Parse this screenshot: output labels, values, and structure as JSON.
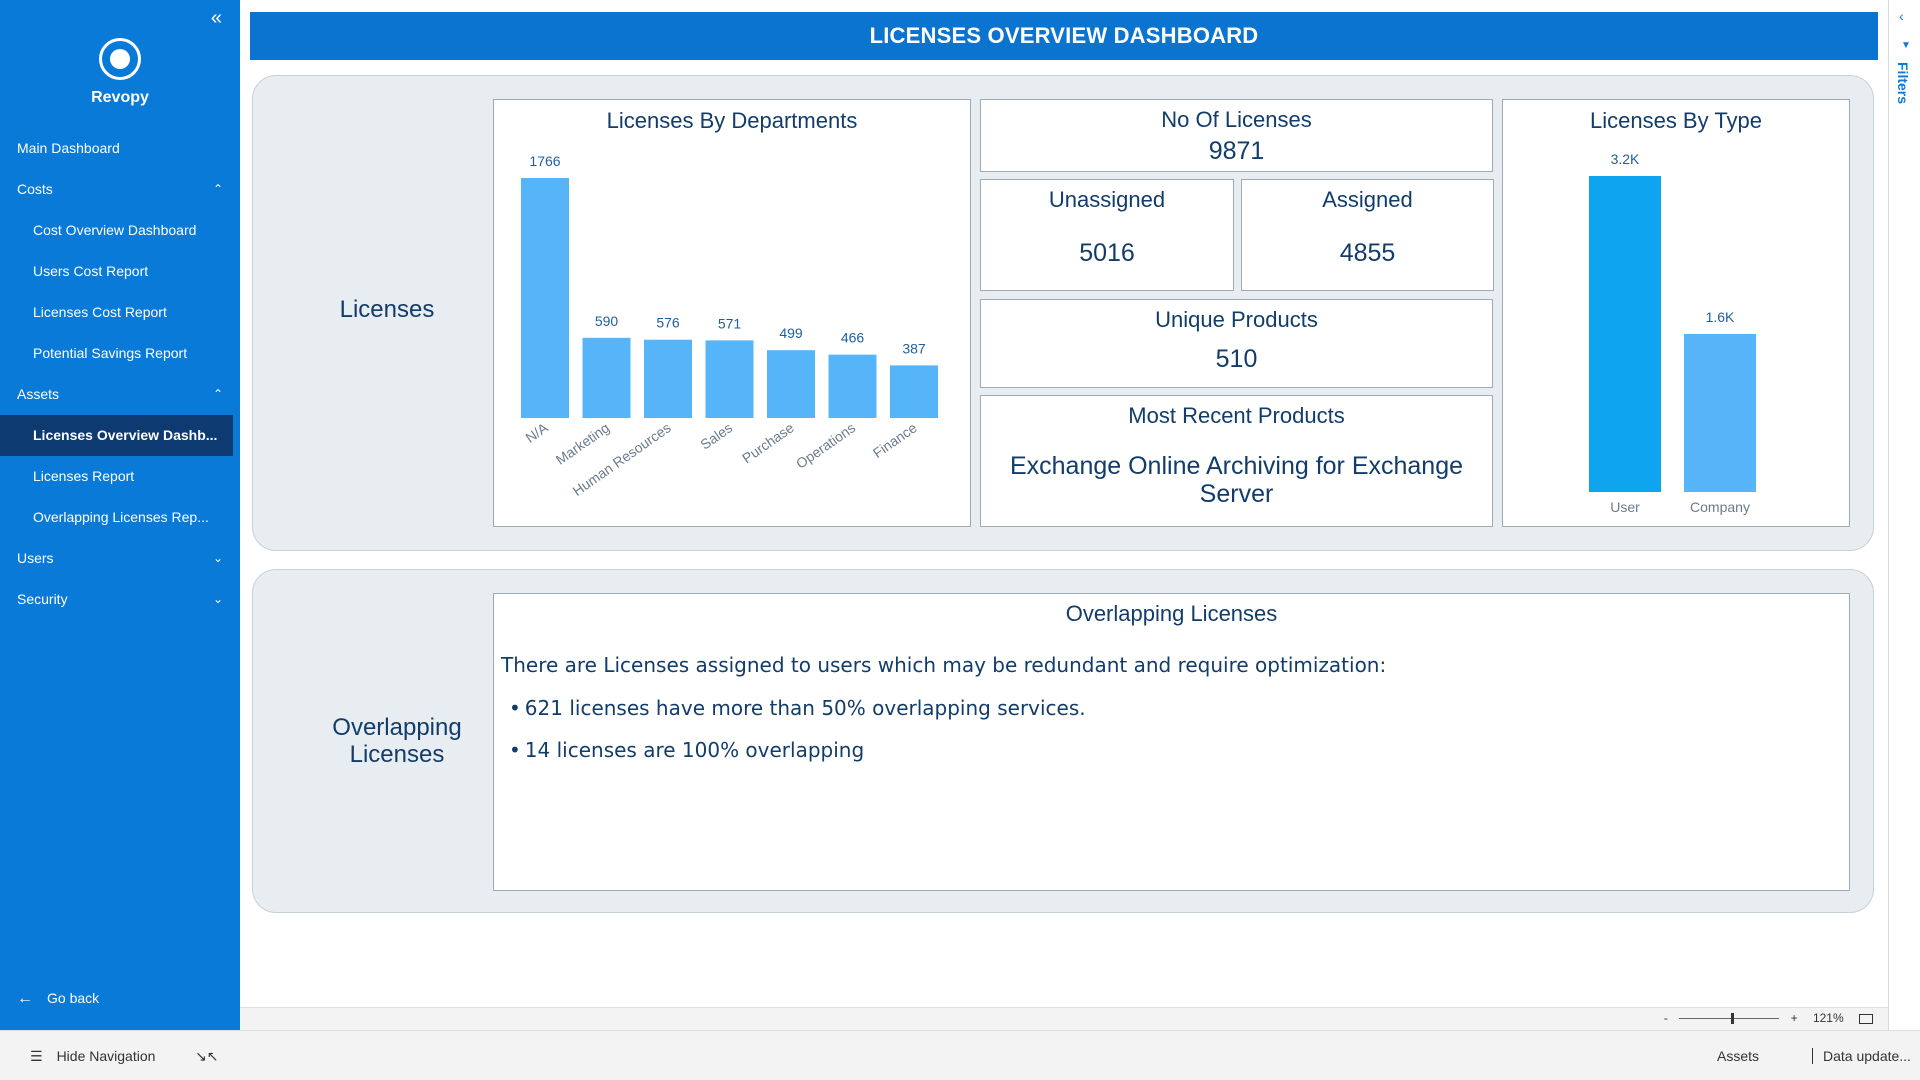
{
  "app": {
    "brand": "Revopy"
  },
  "sidebar": {
    "items": [
      {
        "label": "Main Dashboard"
      },
      {
        "label": "Costs",
        "chevron": "^"
      },
      {
        "label": "Cost Overview Dashboard"
      },
      {
        "label": "Users Cost Report"
      },
      {
        "label": "Licenses Cost Report"
      },
      {
        "label": "Potential Savings Report"
      },
      {
        "label": "Assets",
        "chevron": "^"
      },
      {
        "label": "Licenses Overview Dashb..."
      },
      {
        "label": "Licenses Report"
      },
      {
        "label": "Overlapping Licenses Rep..."
      },
      {
        "label": "Users",
        "chevron": "v"
      },
      {
        "label": "Security",
        "chevron": "v"
      }
    ],
    "go_back": "Go back",
    "collapse_icon": "«"
  },
  "header": {
    "title": "LICENSES OVERVIEW DASHBOARD"
  },
  "filters": {
    "label": "Filters"
  },
  "licenses_section": {
    "label": "Licenses",
    "no_of_licenses": {
      "title": "No Of Licenses",
      "value": "9871"
    },
    "unassigned": {
      "title": "Unassigned",
      "value": "5016"
    },
    "assigned": {
      "title": "Assigned",
      "value": "4855"
    },
    "unique_products": {
      "title": "Unique Products",
      "value": "510"
    },
    "most_recent_products": {
      "title": "Most Recent Products",
      "value": "Exchange Online Archiving for Exchange Server"
    }
  },
  "overlapping_section": {
    "label": "Overlapping Licenses",
    "card_title": "Overlapping Licenses",
    "intro": "There are Licenses assigned to users which may be redundant and require optimization:",
    "bullets": [
      "621 licenses have more than 50% overlapping services.",
      "14 licenses are 100% overlapping"
    ]
  },
  "chart_data": [
    {
      "type": "bar",
      "title": "Licenses By Departments",
      "categories": [
        "N/A",
        "Marketing",
        "Human Resources",
        "Sales",
        "Purchase",
        "Operations",
        "Finance"
      ],
      "values": [
        1766,
        590,
        576,
        571,
        499,
        466,
        387
      ],
      "data_labels": [
        "1766",
        "590",
        "576",
        "571",
        "499",
        "466",
        "387"
      ],
      "ylim": [
        0,
        1766
      ],
      "color": "#56b4f8"
    },
    {
      "type": "bar",
      "title": "Licenses By Type",
      "categories": [
        "User",
        "Company"
      ],
      "values": [
        3200,
        1600
      ],
      "data_labels": [
        "3.2K",
        "1.6K"
      ],
      "ylim": [
        0,
        3200
      ],
      "colors": [
        "#0ea5ee",
        "#56b4f8"
      ]
    }
  ],
  "zoom": {
    "minus": "-",
    "plus": "+",
    "level": "121%"
  },
  "status": {
    "hide_nav": "Hide Navigation",
    "assets": "Assets",
    "data_update": "Data update..."
  }
}
